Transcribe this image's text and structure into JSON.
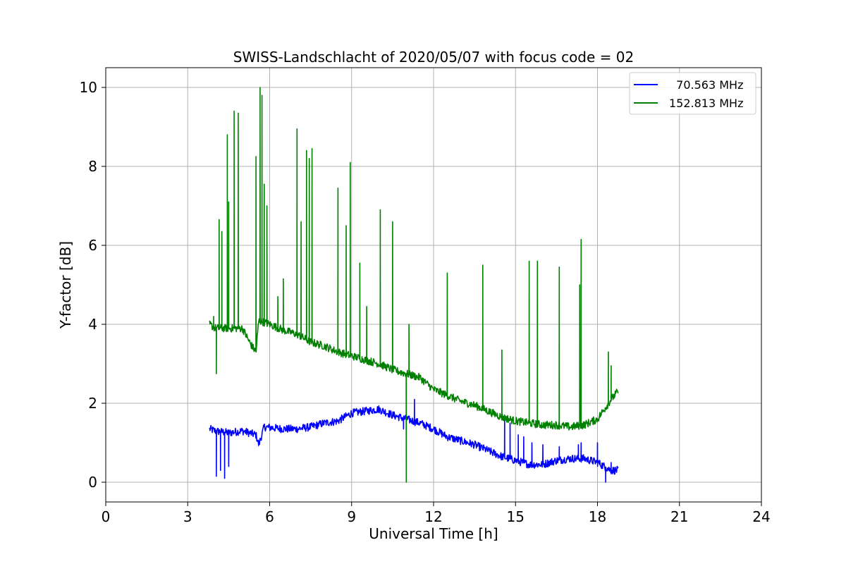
{
  "chart_data": {
    "type": "line",
    "title": "SWISS-Landschlacht of 2020/05/07 with focus code = 02",
    "xlabel": "Universal Time [h]",
    "ylabel": "Y-factor [dB]",
    "xlim": [
      0,
      24
    ],
    "ylim": [
      -0.5,
      10.5
    ],
    "xticks": [
      "0",
      "3",
      "6",
      "9",
      "12",
      "15",
      "18",
      "21",
      "24"
    ],
    "yticks": [
      "0",
      "2",
      "4",
      "6",
      "8",
      "10"
    ],
    "grid": true,
    "legend_position": "top-right",
    "series": [
      {
        "name": "  70.563 MHz",
        "color": "#0000ff",
        "baseline": [
          [
            3.8,
            1.35
          ],
          [
            4.0,
            1.3
          ],
          [
            4.5,
            1.25
          ],
          [
            5.0,
            1.3
          ],
          [
            5.5,
            1.2
          ],
          [
            5.6,
            0.95
          ],
          [
            5.8,
            1.4
          ],
          [
            6.5,
            1.35
          ],
          [
            7.0,
            1.35
          ],
          [
            7.5,
            1.4
          ],
          [
            8.0,
            1.5
          ],
          [
            8.5,
            1.55
          ],
          [
            9.0,
            1.75
          ],
          [
            9.5,
            1.8
          ],
          [
            10.0,
            1.85
          ],
          [
            10.5,
            1.7
          ],
          [
            11.0,
            1.6
          ],
          [
            11.5,
            1.5
          ],
          [
            12.0,
            1.35
          ],
          [
            12.5,
            1.15
          ],
          [
            13.0,
            1.05
          ],
          [
            13.5,
            0.95
          ],
          [
            14.0,
            0.8
          ],
          [
            14.5,
            0.65
          ],
          [
            15.0,
            0.55
          ],
          [
            15.5,
            0.45
          ],
          [
            16.0,
            0.45
          ],
          [
            16.5,
            0.55
          ],
          [
            17.0,
            0.6
          ],
          [
            17.5,
            0.6
          ],
          [
            18.0,
            0.5
          ],
          [
            18.5,
            0.3
          ],
          [
            18.75,
            0.3
          ]
        ],
        "noise_amplitude": 0.1,
        "spikes": [
          [
            4.05,
            0.15
          ],
          [
            4.2,
            0.3
          ],
          [
            4.35,
            0.1
          ],
          [
            4.5,
            0.4
          ],
          [
            10.9,
            1.35
          ],
          [
            11.3,
            2.1
          ],
          [
            14.6,
            1.65
          ],
          [
            14.8,
            1.5
          ],
          [
            15.1,
            1.2
          ],
          [
            15.3,
            1.15
          ],
          [
            15.6,
            1.0
          ],
          [
            16.0,
            0.95
          ],
          [
            16.6,
            0.9
          ],
          [
            17.3,
            0.95
          ],
          [
            17.4,
            1.0
          ],
          [
            18.0,
            1.0
          ],
          [
            18.3,
            0.0
          ],
          [
            18.5,
            0.5
          ]
        ]
      },
      {
        "name": "152.813 MHz",
        "color": "#008000",
        "baseline": [
          [
            3.8,
            4.0
          ],
          [
            4.0,
            3.9
          ],
          [
            4.5,
            3.9
          ],
          [
            5.0,
            3.9
          ],
          [
            5.3,
            3.5
          ],
          [
            5.5,
            3.3
          ],
          [
            5.6,
            4.1
          ],
          [
            6.0,
            4.0
          ],
          [
            6.5,
            3.85
          ],
          [
            7.0,
            3.75
          ],
          [
            7.5,
            3.55
          ],
          [
            8.0,
            3.45
          ],
          [
            8.5,
            3.3
          ],
          [
            9.0,
            3.2
          ],
          [
            9.5,
            3.1
          ],
          [
            10.0,
            3.0
          ],
          [
            10.5,
            2.85
          ],
          [
            11.0,
            2.75
          ],
          [
            11.5,
            2.65
          ],
          [
            12.0,
            2.35
          ],
          [
            12.5,
            2.2
          ],
          [
            13.0,
            2.05
          ],
          [
            13.5,
            1.95
          ],
          [
            14.0,
            1.8
          ],
          [
            14.5,
            1.65
          ],
          [
            15.0,
            1.55
          ],
          [
            15.5,
            1.5
          ],
          [
            16.0,
            1.45
          ],
          [
            16.5,
            1.45
          ],
          [
            17.0,
            1.4
          ],
          [
            17.5,
            1.45
          ],
          [
            18.0,
            1.6
          ],
          [
            18.3,
            1.9
          ],
          [
            18.5,
            2.1
          ],
          [
            18.75,
            2.3
          ]
        ],
        "noise_amplitude": 0.1,
        "spikes": [
          [
            3.95,
            4.2
          ],
          [
            4.05,
            2.75
          ],
          [
            4.15,
            6.65
          ],
          [
            4.25,
            6.35
          ],
          [
            4.45,
            8.8
          ],
          [
            4.5,
            7.1
          ],
          [
            4.7,
            9.4
          ],
          [
            4.85,
            9.35
          ],
          [
            5.5,
            8.25
          ],
          [
            5.65,
            10.0
          ],
          [
            5.72,
            9.8
          ],
          [
            5.8,
            7.55
          ],
          [
            5.9,
            7.0
          ],
          [
            6.3,
            4.7
          ],
          [
            6.5,
            5.15
          ],
          [
            7.0,
            8.95
          ],
          [
            7.15,
            6.6
          ],
          [
            7.35,
            8.4
          ],
          [
            7.45,
            8.2
          ],
          [
            7.55,
            8.45
          ],
          [
            8.5,
            7.45
          ],
          [
            8.8,
            6.5
          ],
          [
            8.95,
            8.1
          ],
          [
            9.3,
            5.55
          ],
          [
            9.55,
            4.45
          ],
          [
            10.05,
            6.9
          ],
          [
            10.5,
            6.6
          ],
          [
            11.0,
            0.0
          ],
          [
            11.1,
            4.0
          ],
          [
            12.5,
            5.3
          ],
          [
            13.8,
            5.5
          ],
          [
            14.5,
            3.35
          ],
          [
            15.5,
            5.6
          ],
          [
            15.8,
            5.6
          ],
          [
            16.6,
            5.45
          ],
          [
            17.35,
            5.0
          ],
          [
            17.4,
            6.15
          ],
          [
            18.4,
            3.3
          ],
          [
            18.5,
            2.95
          ]
        ]
      }
    ]
  }
}
